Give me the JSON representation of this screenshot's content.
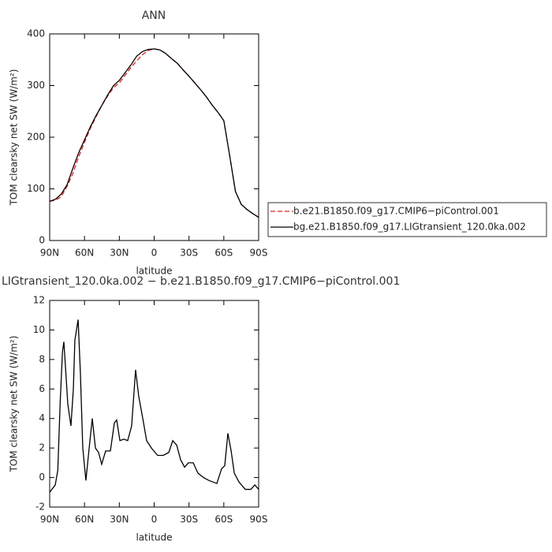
{
  "chart_data": [
    {
      "type": "line",
      "title": "ANN",
      "xlabel": "latitude",
      "ylabel": "TOM clearsky net SW (W/m²)",
      "x": [
        90,
        85,
        80,
        75,
        70,
        65,
        60,
        55,
        50,
        45,
        40,
        35,
        30,
        25,
        20,
        15,
        10,
        5,
        0,
        -5,
        -10,
        -15,
        -20,
        -25,
        -30,
        -35,
        -40,
        -45,
        -50,
        -55,
        -60,
        -65,
        -70,
        -75,
        -80,
        -85,
        -90
      ],
      "series": [
        {
          "name": "b.e21.B1850.f09_g17.CMIP6−piControl.001",
          "color": "#e0201b",
          "dashed": true,
          "values": [
            76,
            78,
            85,
            105,
            130,
            162,
            190,
            217,
            240,
            262,
            280,
            296,
            305,
            320,
            335,
            348,
            360,
            368,
            371,
            369,
            362,
            352,
            343,
            330,
            318,
            305,
            292,
            278,
            262,
            248,
            232,
            165,
            95,
            70,
            60,
            52,
            45
          ]
        },
        {
          "name": "bg.e21.B1850.f09_g17.LIGtransient_120.0ka.002",
          "color": "#000000",
          "dashed": false,
          "values": [
            76,
            80,
            90,
            108,
            140,
            170,
            195,
            220,
            242,
            262,
            282,
            300,
            310,
            325,
            340,
            357,
            366,
            370,
            371,
            369,
            362,
            352,
            343,
            330,
            318,
            305,
            292,
            278,
            262,
            248,
            232,
            165,
            95,
            70,
            60,
            52,
            45
          ]
        }
      ],
      "xlim": [
        90,
        -90
      ],
      "xticks": [
        {
          "value": 90,
          "label": "90N"
        },
        {
          "value": 60,
          "label": "60N"
        },
        {
          "value": 30,
          "label": "30N"
        },
        0,
        {
          "value": -30,
          "label": "30S"
        },
        {
          "value": -60,
          "label": "60S"
        },
        {
          "value": -90,
          "label": "90S"
        }
      ],
      "ylim": [
        0,
        400
      ],
      "yticks": [
        0,
        100,
        200,
        300,
        400
      ],
      "legend": "right"
    },
    {
      "type": "line",
      "title": "LIGtransient_120.0ka.002 − b.e21.B1850.f09_g17.CMIP6−piControl.001",
      "xlabel": "latitude",
      "ylabel": "TOM clearsky net SW (W/m²)",
      "x": [
        90,
        85.2,
        83,
        81,
        79,
        77.8,
        76.4,
        74.4,
        73,
        71.7,
        69.6,
        68.3,
        65.5,
        63.5,
        61.5,
        58.8,
        56,
        53.3,
        50.6,
        47.9,
        45.2,
        41.8,
        37.7,
        34.3,
        32.3,
        29.5,
        26.1,
        22.8,
        19.4,
        16,
        13.3,
        9.8,
        6.5,
        2.4,
        -3,
        -7.8,
        -12.6,
        -16,
        -19.4,
        -22.8,
        -26.2,
        -29.5,
        -33.6,
        -37.7,
        -42.5,
        -47.2,
        -54,
        -58.1,
        -60.8,
        -63.5,
        -66.3,
        -69,
        -73,
        -78.5,
        -83.3,
        -86.7,
        -90
      ],
      "values": [
        -1.0,
        -0.5,
        0.5,
        5,
        8.5,
        9.2,
        7.5,
        5,
        4.2,
        3.5,
        6,
        9.3,
        10.7,
        7,
        2,
        -0.2,
        2,
        4,
        2,
        1.7,
        0.9,
        1.8,
        1.8,
        3.7,
        3.9,
        2.5,
        2.6,
        2.5,
        3.5,
        7.3,
        5.5,
        4,
        2.5,
        2,
        1.5,
        1.5,
        1.7,
        2.5,
        2.2,
        1.2,
        0.7,
        1.0,
        1.0,
        0.3,
        0.0,
        -0.2,
        -0.4,
        0.6,
        0.8,
        3.0,
        1.8,
        0.3,
        -0.3,
        -0.8,
        -0.8,
        -0.5,
        -0.8
      ],
      "color": "#000000",
      "xlim": [
        90,
        -90
      ],
      "xticks": [
        {
          "value": 90,
          "label": "90N"
        },
        {
          "value": 60,
          "label": "60N"
        },
        {
          "value": 30,
          "label": "30N"
        },
        0,
        {
          "value": -30,
          "label": "30S"
        },
        {
          "value": -60,
          "label": "60S"
        },
        {
          "value": -90,
          "label": "90S"
        }
      ],
      "ylim": [
        -2,
        12
      ],
      "yticks": [
        -2,
        0,
        2,
        4,
        6,
        8,
        10,
        12
      ]
    }
  ]
}
